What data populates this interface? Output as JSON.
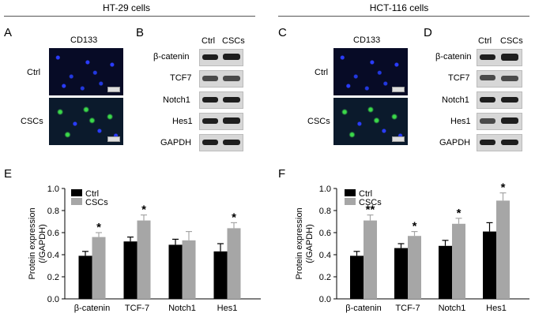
{
  "figure": {
    "groups": [
      {
        "title": "HT-29 cells"
      },
      {
        "title": "HCT-116 cells"
      }
    ],
    "panel_letters": [
      "A",
      "B",
      "C",
      "D",
      "E",
      "F"
    ],
    "micro": {
      "stain_label": "CD133",
      "row_labels": [
        "Ctrl",
        "CSCs"
      ],
      "colors": {
        "nuclei": "#2a3cff",
        "marker": "#3bd94a"
      }
    },
    "blot": {
      "lane_headers": [
        "Ctrl",
        "CSCs"
      ],
      "proteins": [
        "β-catenin",
        "TCF7",
        "Notch1",
        "Hes1",
        "GAPDH"
      ]
    }
  },
  "chart_data": [
    {
      "type": "bar",
      "panel": "E",
      "categories": [
        "β-catenin",
        "TCF-7",
        "Notch1",
        "Hes1"
      ],
      "series": [
        {
          "name": "Ctrl",
          "color": "#000000",
          "values": [
            0.39,
            0.52,
            0.49,
            0.43
          ],
          "errors": [
            0.04,
            0.04,
            0.05,
            0.07
          ]
        },
        {
          "name": "CSCs",
          "color": "#a6a6a6",
          "values": [
            0.56,
            0.71,
            0.53,
            0.64
          ],
          "errors": [
            0.04,
            0.05,
            0.08,
            0.05
          ]
        }
      ],
      "significance": [
        "*",
        "*",
        "",
        "*"
      ],
      "ylabel": "Protein expression (/GAPDH)",
      "ylim": [
        0,
        1.0
      ],
      "yticks": [
        "0.0",
        "0.2",
        "0.4",
        "0.6",
        "0.8",
        "1.0"
      ],
      "legend": "top-left",
      "grid": false
    },
    {
      "type": "bar",
      "panel": "F",
      "categories": [
        "β-catenin",
        "TCF-7",
        "Notch1",
        "Hes1"
      ],
      "series": [
        {
          "name": "Ctrl",
          "color": "#000000",
          "values": [
            0.39,
            0.46,
            0.48,
            0.61
          ],
          "errors": [
            0.04,
            0.04,
            0.05,
            0.08
          ]
        },
        {
          "name": "CSCs",
          "color": "#a6a6a6",
          "values": [
            0.71,
            0.57,
            0.68,
            0.89
          ],
          "errors": [
            0.05,
            0.04,
            0.05,
            0.07
          ]
        }
      ],
      "significance": [
        "**",
        "*",
        "*",
        "*"
      ],
      "ylabel": "Protein expression (/GAPDH)",
      "ylim": [
        0,
        1.0
      ],
      "yticks": [
        "0.0",
        "0.2",
        "0.4",
        "0.6",
        "0.8",
        "1.0"
      ],
      "legend": "top-left",
      "grid": false
    }
  ]
}
